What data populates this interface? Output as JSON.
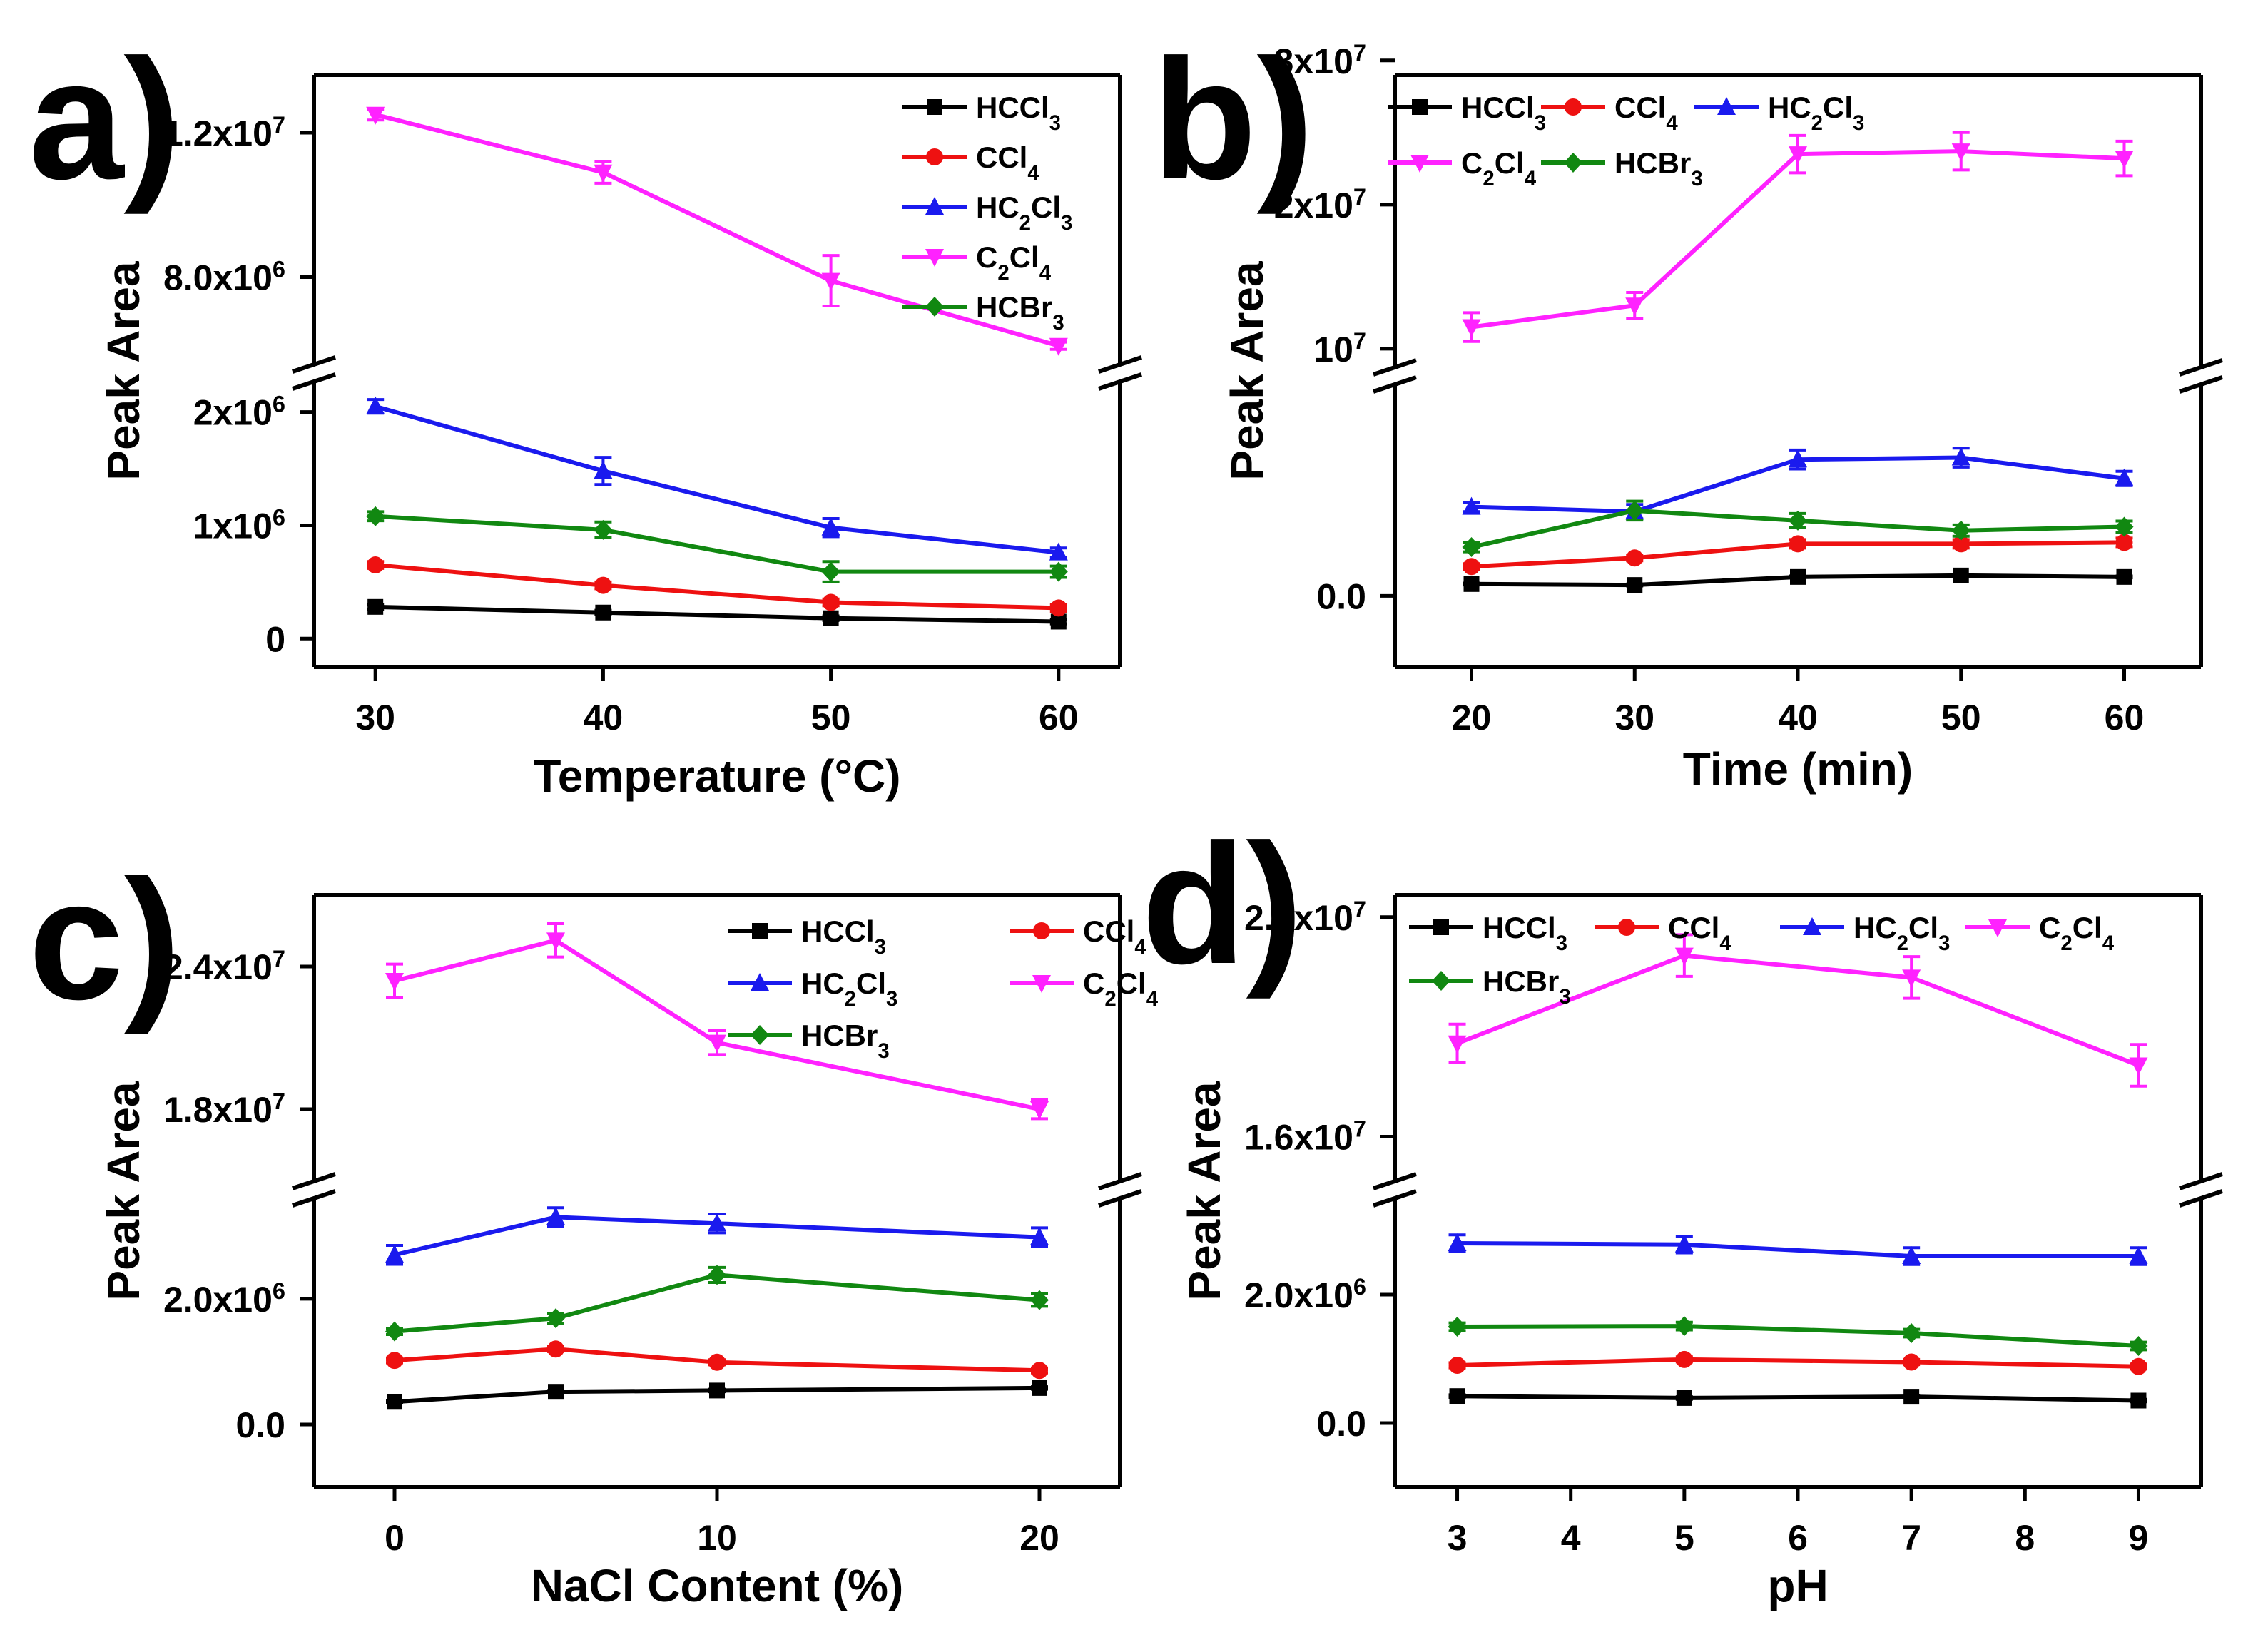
{
  "colors": {
    "HCCl3": "#000000",
    "CCl4": "#ee1111",
    "HC2Cl3": "#1a1aee",
    "C2Cl4": "#ff22ff",
    "HCBr3": "#118811"
  },
  "chart_data": [
    {
      "type": "line",
      "panel": "a)",
      "xlabel": "Temperature (°C)",
      "ylabel": "Peak Area",
      "xticks": [
        "30",
        "40",
        "50",
        "60"
      ],
      "x": [
        30,
        40,
        50,
        60
      ],
      "broken_y_axis": true,
      "yticks_lower": [
        "0",
        "1x10^6",
        "2x10^6"
      ],
      "yticks_upper": [
        "8.0x10^6",
        "1.2x10^7"
      ],
      "series": [
        {
          "key": "HCCl3",
          "name": "HCCl3",
          "marker": "square",
          "values": [
            280000,
            230000,
            180000,
            150000
          ],
          "errors": [
            20000,
            20000,
            20000,
            20000
          ]
        },
        {
          "key": "CCl4",
          "name": "CCl4",
          "marker": "circle",
          "values": [
            650000,
            470000,
            320000,
            270000
          ],
          "errors": [
            30000,
            30000,
            30000,
            30000
          ]
        },
        {
          "key": "HC2Cl3",
          "name": "HC2Cl3",
          "marker": "triangle-up",
          "values": [
            2050000,
            1480000,
            980000,
            760000
          ],
          "errors": [
            60000,
            120000,
            80000,
            40000
          ]
        },
        {
          "key": "C2Cl4",
          "name": "C2Cl4",
          "marker": "triangle-down",
          "values": [
            12500000,
            10900000,
            7900000,
            6100000
          ],
          "errors": [
            150000,
            300000,
            700000,
            100000
          ]
        },
        {
          "key": "HCBr3",
          "name": "HCBr3",
          "marker": "diamond",
          "values": [
            1080000,
            960000,
            590000,
            590000
          ],
          "errors": [
            40000,
            70000,
            90000,
            50000
          ]
        }
      ]
    },
    {
      "type": "line",
      "panel": "b)",
      "xlabel": "Time (min)",
      "ylabel": "Peak Area",
      "xticks": [
        "20",
        "30",
        "40",
        "50",
        "60"
      ],
      "x": [
        20,
        30,
        40,
        50,
        60
      ],
      "broken_y_axis": true,
      "yticks_lower": [
        "0.0"
      ],
      "yticks_upper": [
        "10^7",
        "2x10^7",
        "3x10^7"
      ],
      "series": [
        {
          "key": "HCCl3",
          "name": "HCCl3",
          "marker": "square",
          "values": [
            250000,
            230000,
            400000,
            430000,
            400000
          ],
          "errors": [
            20000,
            20000,
            20000,
            20000,
            20000
          ]
        },
        {
          "key": "CCl4",
          "name": "CCl4",
          "marker": "circle",
          "values": [
            620000,
            800000,
            1100000,
            1100000,
            1130000
          ],
          "errors": [
            60000,
            60000,
            90000,
            90000,
            90000
          ]
        },
        {
          "key": "HC2Cl3",
          "name": "HC2Cl3",
          "marker": "triangle-up",
          "values": [
            1880000,
            1780000,
            2880000,
            2920000,
            2480000
          ],
          "errors": [
            100000,
            150000,
            200000,
            200000,
            150000
          ]
        },
        {
          "key": "C2Cl4",
          "name": "C2Cl4",
          "marker": "triangle-down",
          "values": [
            11500000,
            13000000,
            23500000,
            23700000,
            23200000
          ],
          "errors": [
            1000000,
            900000,
            1300000,
            1300000,
            1200000
          ]
        },
        {
          "key": "HCBr3",
          "name": "HCBr3",
          "marker": "diamond",
          "values": [
            1030000,
            1800000,
            1590000,
            1380000,
            1460000
          ],
          "errors": [
            100000,
            200000,
            150000,
            120000,
            120000
          ]
        }
      ]
    },
    {
      "type": "line",
      "panel": "c)",
      "xlabel": "NaCl Content (%)",
      "ylabel": "Peak Area",
      "xticks": [
        "0",
        "10",
        "20"
      ],
      "x": [
        0,
        5,
        10,
        20
      ],
      "broken_y_axis": true,
      "yticks_lower": [
        "0.0",
        "2.0x10^6"
      ],
      "yticks_upper": [
        "1.8x10^7",
        "2.4x10^7"
      ],
      "series": [
        {
          "key": "HCCl3",
          "name": "HCCl3",
          "marker": "square",
          "values": [
            360000,
            520000,
            540000,
            580000
          ],
          "errors": [
            20000,
            20000,
            20000,
            20000
          ]
        },
        {
          "key": "CCl4",
          "name": "CCl4",
          "marker": "circle",
          "values": [
            1020000,
            1200000,
            990000,
            860000
          ],
          "errors": [
            40000,
            40000,
            40000,
            40000
          ]
        },
        {
          "key": "HC2Cl3",
          "name": "HC2Cl3",
          "marker": "triangle-up",
          "values": [
            2700000,
            3300000,
            3200000,
            2980000
          ],
          "errors": [
            150000,
            150000,
            150000,
            150000
          ]
        },
        {
          "key": "C2Cl4",
          "name": "C2Cl4",
          "marker": "triangle-down",
          "values": [
            23400000,
            25100000,
            20800000,
            18000000
          ],
          "errors": [
            700000,
            700000,
            500000,
            400000
          ]
        },
        {
          "key": "HCBr3",
          "name": "HCBr3",
          "marker": "diamond",
          "values": [
            1480000,
            1690000,
            2380000,
            1980000
          ],
          "errors": [
            50000,
            80000,
            120000,
            100000
          ]
        }
      ]
    },
    {
      "type": "line",
      "panel": "d)",
      "xlabel": "pH",
      "ylabel": "Peak Area",
      "xticks": [
        "3",
        "4",
        "5",
        "6",
        "7",
        "8",
        "9"
      ],
      "x": [
        3,
        5,
        7,
        9
      ],
      "broken_y_axis": true,
      "yticks_lower": [
        "0.0",
        "2.0x10^6"
      ],
      "yticks_upper": [
        "1.6x10^7",
        "2.0x10^7"
      ],
      "series": [
        {
          "key": "HCCl3",
          "name": "HCCl3",
          "marker": "square",
          "values": [
            420000,
            390000,
            410000,
            350000
          ],
          "errors": [
            20000,
            20000,
            20000,
            20000
          ]
        },
        {
          "key": "CCl4",
          "name": "CCl4",
          "marker": "circle",
          "values": [
            900000,
            990000,
            950000,
            880000
          ],
          "errors": [
            40000,
            40000,
            40000,
            40000
          ]
        },
        {
          "key": "HC2Cl3",
          "name": "HC2Cl3",
          "marker": "triangle-up",
          "values": [
            2800000,
            2780000,
            2600000,
            2600000
          ],
          "errors": [
            130000,
            130000,
            130000,
            130000
          ]
        },
        {
          "key": "C2Cl4",
          "name": "C2Cl4",
          "marker": "triangle-down",
          "values": [
            17700000,
            19300000,
            18900000,
            17300000
          ],
          "errors": [
            350000,
            380000,
            380000,
            380000
          ]
        },
        {
          "key": "HCBr3",
          "name": "HCBr3",
          "marker": "diamond",
          "values": [
            1500000,
            1510000,
            1400000,
            1200000
          ],
          "errors": [
            60000,
            60000,
            60000,
            60000
          ]
        }
      ]
    }
  ]
}
